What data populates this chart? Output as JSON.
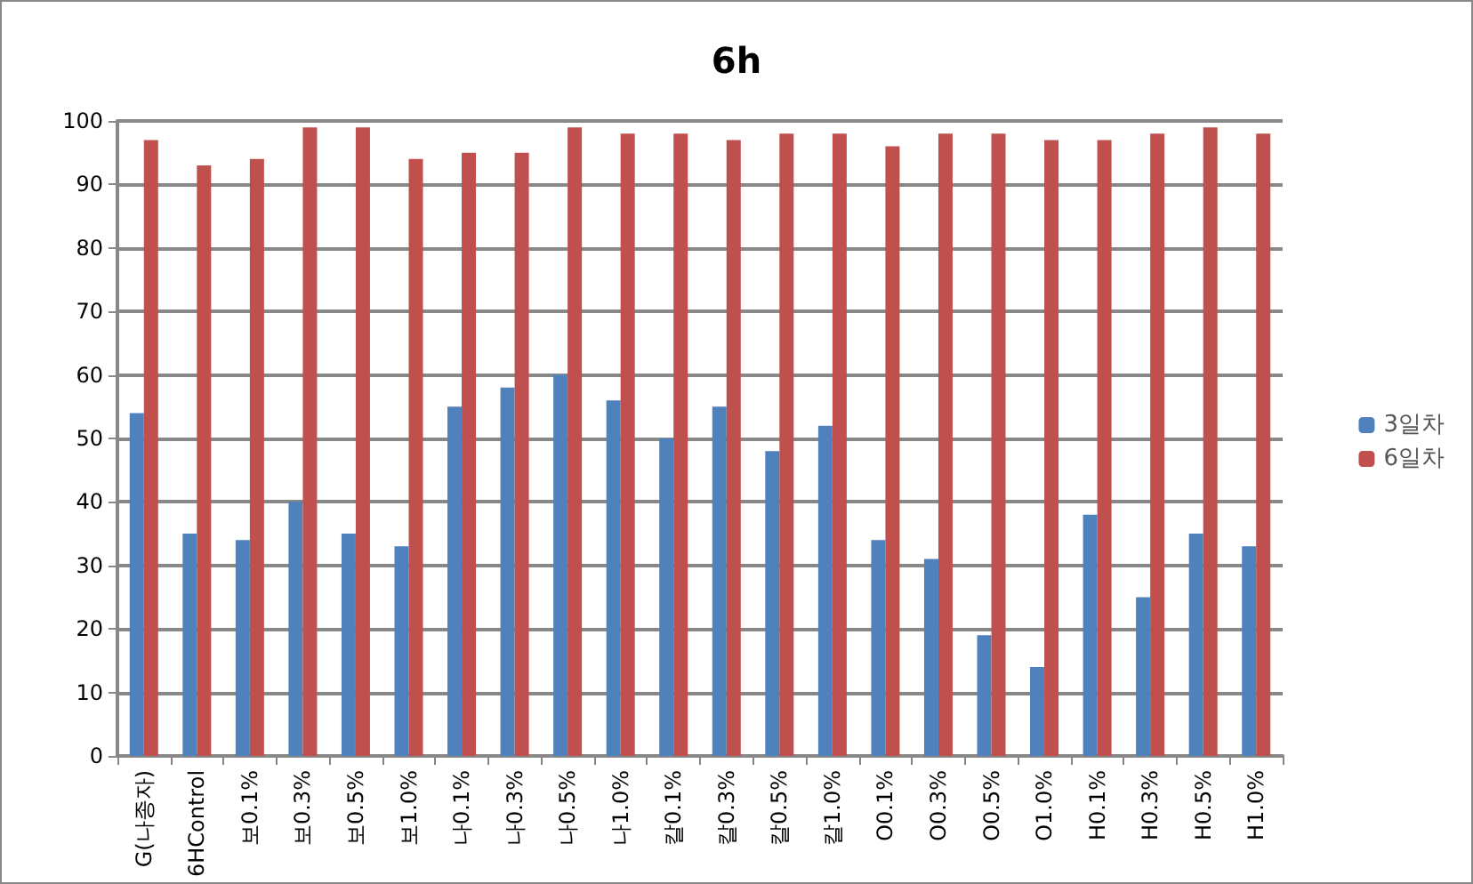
{
  "chart_data": {
    "type": "bar",
    "title": "6h",
    "categories": [
      "G(나종자)",
      "6HControl",
      "보0.1%",
      "보0.3%",
      "보0.5%",
      "보1.0%",
      "나0.1%",
      "나0.3%",
      "나0.5%",
      "나1.0%",
      "칼0.1%",
      "칼0.3%",
      "칼0.5%",
      "칼1.0%",
      "O0.1%",
      "O0.3%",
      "O0.5%",
      "O1.0%",
      "H0.1%",
      "H0.3%",
      "H0.5%",
      "H1.0%"
    ],
    "series": [
      {
        "name": "3일차",
        "color": "#4f81bd",
        "values": [
          54,
          35,
          34,
          40,
          35,
          33,
          55,
          58,
          60,
          56,
          50,
          55,
          48,
          52,
          34,
          31,
          19,
          14,
          38,
          25,
          35,
          33
        ]
      },
      {
        "name": "6일차",
        "color": "#c0504d",
        "values": [
          97,
          93,
          94,
          99,
          99,
          94,
          95,
          95,
          99,
          98,
          98,
          97,
          98,
          98,
          96,
          98,
          98,
          97,
          97,
          98,
          99,
          98
        ]
      }
    ],
    "ylim": [
      0,
      100
    ],
    "yticks": [
      0,
      10,
      20,
      30,
      40,
      50,
      60,
      70,
      80,
      90,
      100
    ],
    "grid": "y",
    "legend": "right"
  }
}
